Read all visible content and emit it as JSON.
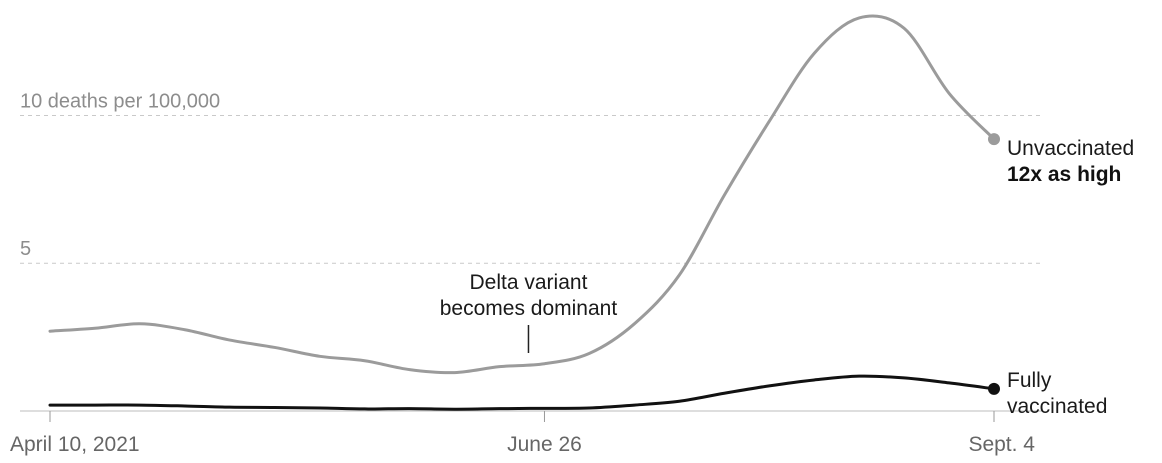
{
  "chart_data": {
    "type": "line",
    "x_ticks": [
      "April 10, 2021",
      "June 26",
      "Sept. 4"
    ],
    "x": [
      "2021-04-10",
      "2021-04-17",
      "2021-04-24",
      "2021-05-01",
      "2021-05-08",
      "2021-05-15",
      "2021-05-22",
      "2021-05-29",
      "2021-06-05",
      "2021-06-12",
      "2021-06-19",
      "2021-06-26",
      "2021-07-03",
      "2021-07-10",
      "2021-07-17",
      "2021-07-24",
      "2021-07-31",
      "2021-08-07",
      "2021-08-14",
      "2021-08-21",
      "2021-08-28",
      "2021-09-04"
    ],
    "ylim": [
      0,
      13.5
    ],
    "gridlines": [
      {
        "value": 10,
        "label": "10 deaths per 100,000"
      },
      {
        "value": 5,
        "label": "5"
      }
    ],
    "series": [
      {
        "name": "Unvaccinated",
        "sub_label": "12x as high",
        "color": "#9b9b9b",
        "values": [
          2.7,
          2.8,
          2.95,
          2.75,
          2.4,
          2.15,
          1.85,
          1.7,
          1.4,
          1.3,
          1.5,
          1.6,
          1.95,
          2.95,
          4.6,
          7.3,
          9.8,
          12.1,
          13.3,
          12.95,
          10.75,
          9.2
        ]
      },
      {
        "name": "Fully vaccinated",
        "color": "#111111",
        "values": [
          0.2,
          0.2,
          0.2,
          0.17,
          0.13,
          0.12,
          0.1,
          0.07,
          0.08,
          0.06,
          0.08,
          0.09,
          0.1,
          0.2,
          0.33,
          0.6,
          0.85,
          1.05,
          1.18,
          1.12,
          0.95,
          0.75
        ]
      }
    ],
    "annotation": {
      "lines": [
        "Delta variant",
        "becomes dominant"
      ],
      "x": "2021-06-26"
    },
    "grid": true,
    "legend": "end-of-line labels"
  }
}
